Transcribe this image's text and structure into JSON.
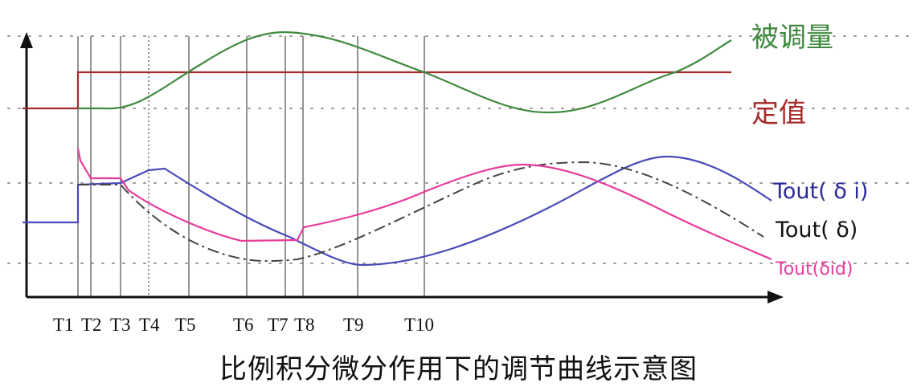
{
  "caption": "比例积分微分作用下的调节曲线示意图",
  "time_marks": [
    "T1",
    "T2",
    "T3",
    "T4",
    "T5",
    "T6",
    "T7",
    "T8",
    "T9",
    "T10"
  ],
  "time_marks_dotted": [
    "T4"
  ],
  "curve_labels": {
    "controlled": "被调量",
    "setpoint": "定值",
    "out_i": "Tout( δ i)",
    "out_p": "Tout( δ)",
    "out_pid": "Tout(δid)"
  },
  "colors": {
    "controlled": "#3f8a3f",
    "setpoint": "#a52a2a",
    "out_i": "#4a4ab8",
    "out_p": "#444444",
    "out_pid": "#e83c9a",
    "axis": "#111111",
    "grid": "#9a9a9a"
  },
  "axes": {
    "x_arrow": "right",
    "y_arrow": "up",
    "grid": "dotted horizontal"
  }
}
